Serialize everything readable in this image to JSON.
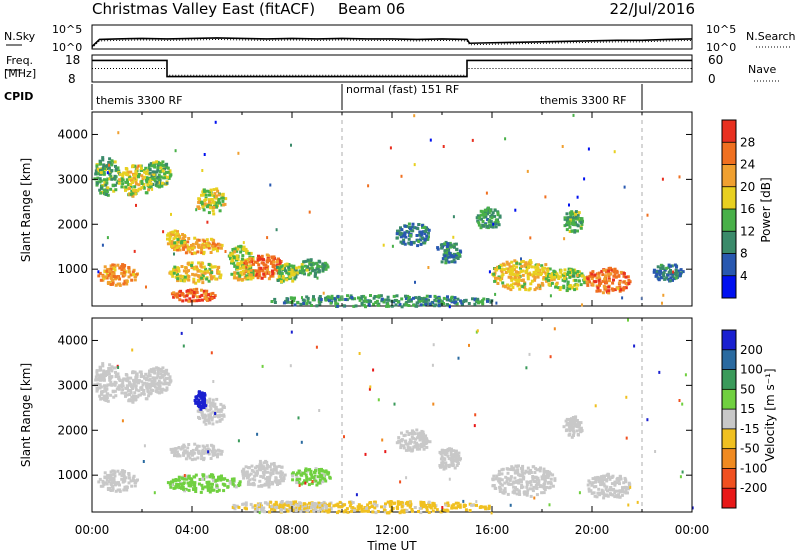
{
  "header": {
    "title": "Christmas Valley East (fitACF)",
    "beam": "Beam 06",
    "date": "22/Jul/2016"
  },
  "top_panels": {
    "nsky_label": "N.Sky",
    "nsky_ticks": [
      "10^5",
      "10^0"
    ],
    "nsearch_label": "N.Search",
    "nsearch_ticks": [
      "10^5",
      "10^0"
    ],
    "freq_label_1": "Freq.",
    "freq_label_2": "[MHz]",
    "freq_ticks": [
      "18",
      "8"
    ],
    "nave_label": "Nave",
    "nave_ticks": [
      "60",
      "0"
    ],
    "cpid_label": "CPID",
    "cpid_segments": [
      "themis 3300 RF",
      "normal (fast) 151 RF",
      "themis 3300 RF"
    ]
  },
  "chart_data": [
    {
      "type": "line",
      "name": "N.Sky / N.Search noise",
      "x_hours": [
        0,
        0.3,
        1,
        2,
        3,
        4,
        5,
        6,
        7,
        8,
        9,
        10,
        11,
        12,
        13,
        14,
        15,
        15.1,
        16,
        17,
        18,
        19,
        20,
        21,
        22,
        23,
        24
      ],
      "log10_values": [
        0.5,
        2.0,
        2.1,
        2.2,
        2.1,
        2.2,
        2.3,
        2.2,
        2.1,
        2.2,
        2.1,
        2.2,
        2.1,
        2.1,
        2.0,
        2.1,
        2.0,
        1.2,
        1.3,
        1.4,
        1.5,
        1.6,
        1.7,
        1.8,
        1.8,
        2.0,
        2.1
      ],
      "ylim_log10": [
        0,
        5
      ]
    },
    {
      "type": "line",
      "name": "Freq / Nave",
      "freq_steps": [
        {
          "start": 0,
          "end": 3,
          "mhz": 16
        },
        {
          "start": 3,
          "end": 15,
          "mhz": 10
        },
        {
          "start": 15,
          "end": 24,
          "mhz": 16
        }
      ],
      "nave_steps": [
        {
          "start": 0,
          "end": 3,
          "value": 30
        },
        {
          "start": 3,
          "end": 15,
          "value": 15
        },
        {
          "start": 15,
          "end": 24,
          "value": 30
        }
      ],
      "freq_ylim": [
        8,
        18
      ],
      "nave_ylim": [
        0,
        60
      ],
      "cpid_boundaries_hours": [
        10,
        22
      ]
    },
    {
      "type": "heatmap",
      "name": "power",
      "ylabel": "Slant Range [km]",
      "yticks": [
        "1000",
        "2000",
        "3000",
        "4000"
      ],
      "ylim": [
        180,
        4500
      ],
      "colorbar_label": "Power [dB]",
      "colorbar_ticks": [
        "4",
        "8",
        "12",
        "16",
        "20",
        "24",
        "28"
      ],
      "colorbar_colors": [
        "#0010f0",
        "#2858b0",
        "#3a8a6a",
        "#48b048",
        "#e8d020",
        "#f0a030",
        "#f07020",
        "#e83020"
      ],
      "clim": [
        0,
        30
      ],
      "blobs": [
        {
          "t": 0.55,
          "r": 3100,
          "dt": 0.5,
          "dr": 450,
          "v": 12
        },
        {
          "t": 1.7,
          "r": 3000,
          "dt": 0.7,
          "dr": 350,
          "v": 16
        },
        {
          "t": 2.6,
          "r": 3150,
          "dt": 0.5,
          "dr": 300,
          "v": 13
        },
        {
          "t": 1.0,
          "r": 900,
          "dt": 0.8,
          "dr": 250,
          "v": 22
        },
        {
          "t": 4.1,
          "r": 1550,
          "dt": 1.1,
          "dr": 180,
          "v": 21
        },
        {
          "t": 3.3,
          "r": 1700,
          "dt": 0.4,
          "dr": 200,
          "v": 18
        },
        {
          "t": 4.7,
          "r": 2550,
          "dt": 0.6,
          "dr": 300,
          "v": 16
        },
        {
          "t": 5.9,
          "r": 1300,
          "dt": 0.5,
          "dr": 250,
          "v": 15
        },
        {
          "t": 4.1,
          "r": 950,
          "dt": 1.1,
          "dr": 230,
          "v": 18
        },
        {
          "t": 4.0,
          "r": 450,
          "dt": 0.9,
          "dr": 150,
          "v": 25
        },
        {
          "t": 6.8,
          "r": 1080,
          "dt": 0.8,
          "dr": 280,
          "v": 24
        },
        {
          "t": 6.0,
          "r": 950,
          "dt": 0.5,
          "dr": 180,
          "v": 17
        },
        {
          "t": 7.7,
          "r": 950,
          "dt": 0.5,
          "dr": 220,
          "v": 14
        },
        {
          "t": 8.8,
          "r": 1050,
          "dt": 0.6,
          "dr": 200,
          "v": 12
        },
        {
          "t": 12.8,
          "r": 1800,
          "dt": 0.7,
          "dr": 250,
          "v": 8
        },
        {
          "t": 14.2,
          "r": 1400,
          "dt": 0.5,
          "dr": 250,
          "v": 9
        },
        {
          "t": 15.8,
          "r": 2150,
          "dt": 0.5,
          "dr": 250,
          "v": 11
        },
        {
          "t": 17.2,
          "r": 900,
          "dt": 1.3,
          "dr": 350,
          "v": 18
        },
        {
          "t": 18.9,
          "r": 800,
          "dt": 0.8,
          "dr": 250,
          "v": 15
        },
        {
          "t": 20.6,
          "r": 780,
          "dt": 0.9,
          "dr": 280,
          "v": 24
        },
        {
          "t": 19.2,
          "r": 2100,
          "dt": 0.4,
          "dr": 250,
          "v": 12
        },
        {
          "t": 23.0,
          "r": 950,
          "dt": 0.6,
          "dr": 200,
          "v": 8
        },
        {
          "t": 11.5,
          "r": 320,
          "dt": 4.5,
          "dr": 130,
          "v": 10
        }
      ]
    },
    {
      "type": "heatmap",
      "name": "velocity",
      "ylabel": "Slant Range [km]",
      "yticks": [
        "1000",
        "2000",
        "3000",
        "4000"
      ],
      "ylim": [
        180,
        4500
      ],
      "xlabel": "Time UT",
      "xticks": [
        "00:00",
        "04:00",
        "08:00",
        "12:00",
        "16:00",
        "20:00",
        "00:00"
      ],
      "xlim_hours": [
        0,
        24
      ],
      "colorbar_label": "Velocity [m s⁻¹]",
      "colorbar_ticks": [
        "200",
        "100",
        "50",
        "15",
        "-15",
        "-50",
        "-100",
        "-200"
      ],
      "colorbar_colors": [
        "#1a20d0",
        "#2a6aa0",
        "#3a9a5a",
        "#70d040",
        "#c8c8c8",
        "#f0c020",
        "#f08a20",
        "#f05020",
        "#e81818"
      ],
      "clim": [
        -250,
        250
      ],
      "blobs": [
        {
          "t": 0.55,
          "r": 3100,
          "dt": 0.5,
          "dr": 450,
          "v": 0
        },
        {
          "t": 1.7,
          "r": 3000,
          "dt": 0.7,
          "dr": 350,
          "v": 0
        },
        {
          "t": 2.6,
          "r": 3150,
          "dt": 0.5,
          "dr": 300,
          "v": 0
        },
        {
          "t": 1.0,
          "r": 900,
          "dt": 0.8,
          "dr": 250,
          "v": 0
        },
        {
          "t": 4.1,
          "r": 1550,
          "dt": 1.1,
          "dr": 180,
          "v": 0
        },
        {
          "t": 4.7,
          "r": 2450,
          "dt": 0.6,
          "dr": 300,
          "v": 0
        },
        {
          "t": 4.4,
          "r": 850,
          "dt": 1.5,
          "dr": 200,
          "v": 40
        },
        {
          "t": 4.3,
          "r": 2700,
          "dt": 0.25,
          "dr": 200,
          "v": 230
        },
        {
          "t": 6.8,
          "r": 1050,
          "dt": 0.9,
          "dr": 300,
          "v": 0
        },
        {
          "t": 8.7,
          "r": 1000,
          "dt": 0.8,
          "dr": 200,
          "v": 40
        },
        {
          "t": 12.8,
          "r": 1800,
          "dt": 0.7,
          "dr": 250,
          "v": 0
        },
        {
          "t": 14.2,
          "r": 1400,
          "dt": 0.5,
          "dr": 250,
          "v": 0
        },
        {
          "t": 17.2,
          "r": 900,
          "dt": 1.3,
          "dr": 350,
          "v": 0
        },
        {
          "t": 20.6,
          "r": 780,
          "dt": 0.9,
          "dr": 280,
          "v": 0
        },
        {
          "t": 19.2,
          "r": 2100,
          "dt": 0.4,
          "dr": 250,
          "v": 0
        },
        {
          "t": 11.5,
          "r": 320,
          "dt": 4.5,
          "dr": 130,
          "v": -40
        },
        {
          "t": 7.5,
          "r": 330,
          "dt": 2.0,
          "dr": 120,
          "v": -25
        }
      ]
    }
  ]
}
